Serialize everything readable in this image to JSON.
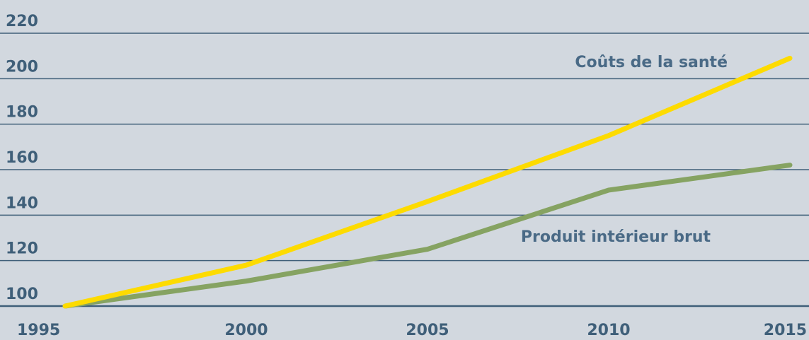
{
  "chart_data": {
    "type": "line",
    "x": [
      1995,
      2000,
      2005,
      2010,
      2015
    ],
    "ylim": [
      100,
      220
    ],
    "yticks": [
      100,
      120,
      140,
      160,
      180,
      200,
      220
    ],
    "xtick_labels": [
      "1995",
      "2000",
      "2005",
      "2010",
      "2015"
    ],
    "ytick_labels": [
      "100",
      "120",
      "140",
      "160",
      "180",
      "200",
      "220"
    ],
    "grid": true,
    "series": [
      {
        "name": "Coûts de la santé",
        "color": "#fddb00",
        "values": [
          100,
          118,
          146,
          175,
          209
        ]
      },
      {
        "name": "Produit intérieur brut",
        "color": "#86a362",
        "values": [
          100,
          111,
          125,
          151,
          162
        ]
      }
    ]
  },
  "colors": {
    "background": "#d2d8df",
    "gridline": "#3f5f79",
    "tick_text": "#3f5f79",
    "label_text": "#4a6a86"
  }
}
